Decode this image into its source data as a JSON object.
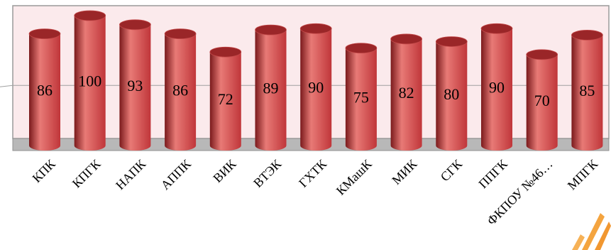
{
  "chart_data": {
    "type": "bar",
    "style": "3d-cylinder",
    "categories": [
      "КПК",
      "КПГК",
      "НАПК",
      "АППК",
      "ВИК",
      "ВТЭК",
      "ГХТК",
      "КМашК",
      "МИК",
      "СГК",
      "ППГК",
      "ФКПОУ №46…",
      "МПГК"
    ],
    "values": [
      86,
      100,
      93,
      86,
      72,
      89,
      90,
      75,
      82,
      80,
      90,
      70,
      85
    ],
    "ylim": [
      0,
      100
    ],
    "grid": true,
    "data_labels": true,
    "colors": {
      "bar": "#c0363a",
      "bar_dark": "#7a1a1c",
      "bar_light": "#e87a76",
      "bar_top": "#9a2628",
      "wall": "#fbeaec",
      "wall_border": "#9a9a9a",
      "floor": "#b8b8b8"
    }
  }
}
